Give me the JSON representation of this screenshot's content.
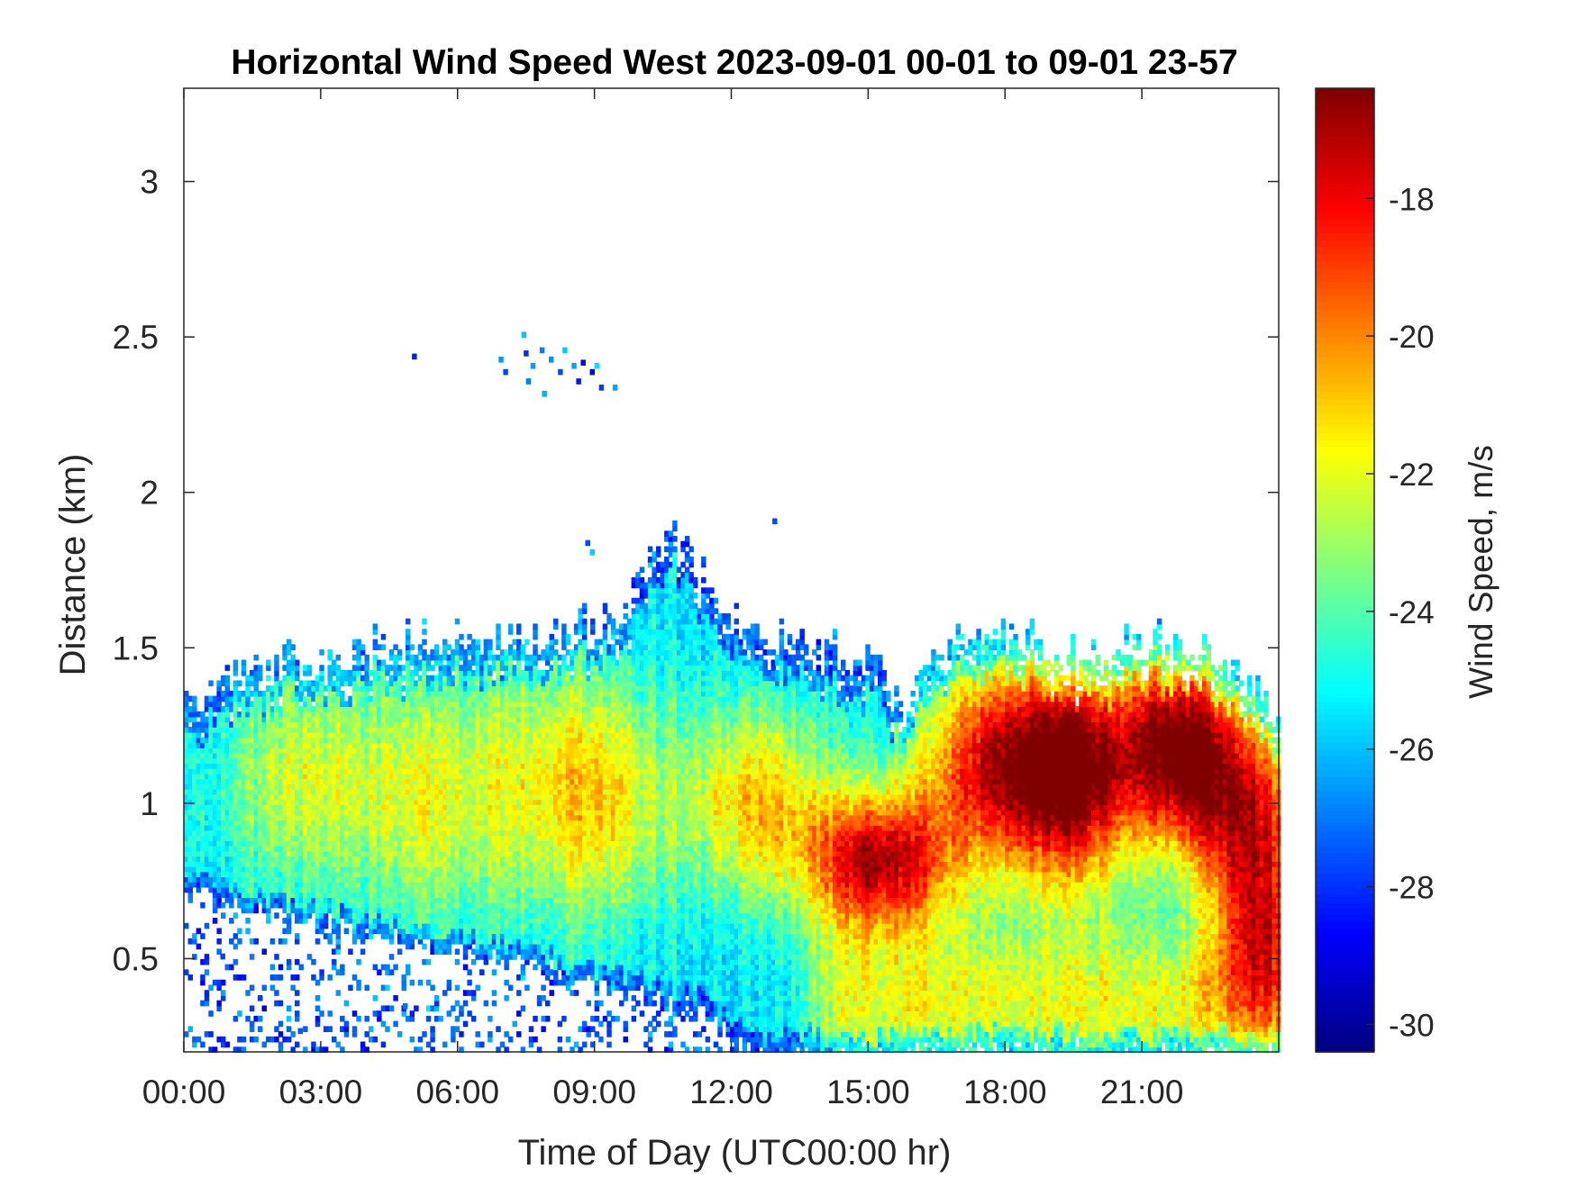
{
  "chart_data": {
    "type": "heatmap",
    "title": "Horizontal Wind Speed West 2023-09-01 00-01 to 09-01 23-57",
    "xlabel": "Time of Day (UTC00:00 hr)",
    "ylabel": "Distance (km)",
    "colorbar_label": "Wind Speed, m/s",
    "xlim": [
      0,
      24
    ],
    "ylim": [
      0.2,
      3.3
    ],
    "x_tick_values": [
      0,
      3,
      6,
      9,
      12,
      15,
      18,
      21
    ],
    "x_tick_labels": [
      "00:00",
      "03:00",
      "06:00",
      "09:00",
      "12:00",
      "15:00",
      "18:00",
      "21:00"
    ],
    "y_tick_values": [
      0.5,
      1,
      1.5,
      2,
      2.5,
      3
    ],
    "y_tick_labels": [
      "0.5",
      "1",
      "1.5",
      "2",
      "2.5",
      "3"
    ],
    "clim": [
      -30.4,
      -16.4
    ],
    "colorbar_tick_values": [
      -30,
      -28,
      -26,
      -24,
      -22,
      -20,
      -18
    ],
    "colorbar_tick_labels": [
      "-30",
      "-28",
      "-26",
      "-24",
      "-22",
      "-20",
      "-18"
    ],
    "colormap": "jet",
    "grid": false,
    "colorbar_position": "right",
    "approx_field_features": [
      {
        "time_hr": 2.5,
        "distance_km": 1.1,
        "speed_ms": -22
      },
      {
        "time_hr": 7.5,
        "distance_km": 1.05,
        "speed_ms": -21.5
      },
      {
        "time_hr": 12.5,
        "distance_km": 1.0,
        "speed_ms": -20.5
      },
      {
        "time_hr": 15.2,
        "distance_km": 0.8,
        "speed_ms": -17
      },
      {
        "time_hr": 17.8,
        "distance_km": 1.1,
        "speed_ms": -17.5
      },
      {
        "time_hr": 19.5,
        "distance_km": 1.05,
        "speed_ms": -17.5
      },
      {
        "time_hr": 21.7,
        "distance_km": 1.2,
        "speed_ms": -16.5
      },
      {
        "time_hr": 23.5,
        "distance_km": 0.6,
        "speed_ms": -19
      }
    ]
  }
}
